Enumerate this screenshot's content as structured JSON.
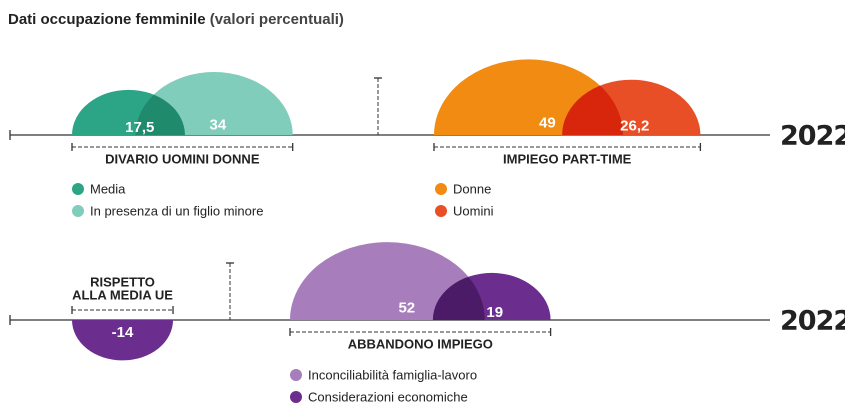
{
  "title": "Dati occupazione femminile",
  "subtitle": "(valori percentuali)",
  "years": [
    "2022",
    "2022"
  ],
  "chart_data": [
    {
      "type": "semicircle",
      "label": [
        "DIVARIO UOMINI DONNE"
      ],
      "overlap_color": "#1f8a6c",
      "series": [
        {
          "name": "Media",
          "color": "#2ba585",
          "values": [
            17.5
          ],
          "value_labels": [
            "17,5"
          ]
        },
        {
          "name": "In presenza di un figlio minore",
          "color": "#80cdbb",
          "values": [
            34
          ]
        }
      ]
    },
    {
      "type": "semicircle",
      "label": [
        "IMPIEGO PART-TIME"
      ],
      "overlap_color": "#d8260c",
      "series": [
        {
          "name": "Donne",
          "color": "#f28b12",
          "values": [
            49
          ]
        },
        {
          "name": "Uomini",
          "color": "#e84f27",
          "values": [
            26.2
          ],
          "value_labels": [
            "26,2"
          ]
        }
      ]
    },
    {
      "type": "semicircle",
      "label": [
        "RISPETTO",
        "ALLA MEDIA UE"
      ],
      "series": [
        {
          "color": "#6c2e8e",
          "values": [
            -14
          ]
        }
      ]
    },
    {
      "type": "semicircle",
      "label": [
        "ABBANDONO IMPIEGO"
      ],
      "overlap_color": "#4b1b67",
      "series": [
        {
          "name": "Inconciliabilità famiglia-lavoro",
          "color": "#a77dbb",
          "values": [
            52
          ]
        },
        {
          "name": "Considerazioni economiche",
          "color": "#6c2e8e",
          "values": [
            19
          ]
        }
      ]
    }
  ]
}
